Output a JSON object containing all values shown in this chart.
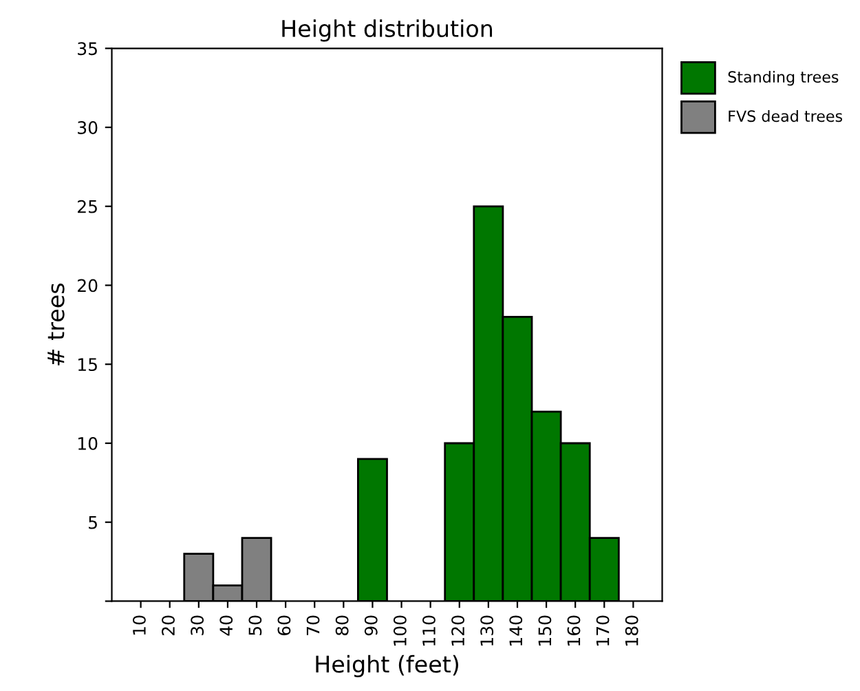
{
  "chart_data": {
    "type": "bar",
    "title": "Height distribution",
    "xlabel": "Height (feet)",
    "ylabel": "# trees",
    "categories": [
      "10",
      "20",
      "30",
      "40",
      "50",
      "60",
      "70",
      "80",
      "90",
      "100",
      "110",
      "120",
      "130",
      "140",
      "150",
      "160",
      "170",
      "180"
    ],
    "series": [
      {
        "name": "Standing trees",
        "color": "#007700",
        "values": [
          null,
          null,
          null,
          null,
          null,
          null,
          null,
          null,
          9,
          null,
          null,
          10,
          25,
          18,
          12,
          10,
          4,
          null
        ]
      },
      {
        "name": "FVS dead trees",
        "color": "#808080",
        "values": [
          null,
          null,
          3,
          1,
          4,
          null,
          null,
          null,
          null,
          null,
          null,
          null,
          null,
          null,
          null,
          null,
          null,
          null
        ]
      }
    ],
    "ylim": [
      0,
      35
    ],
    "yticks": [
      {
        "value": 0,
        "label": null
      },
      5,
      10,
      15,
      20,
      25,
      30,
      35
    ],
    "grid": false,
    "legend": "top right"
  }
}
